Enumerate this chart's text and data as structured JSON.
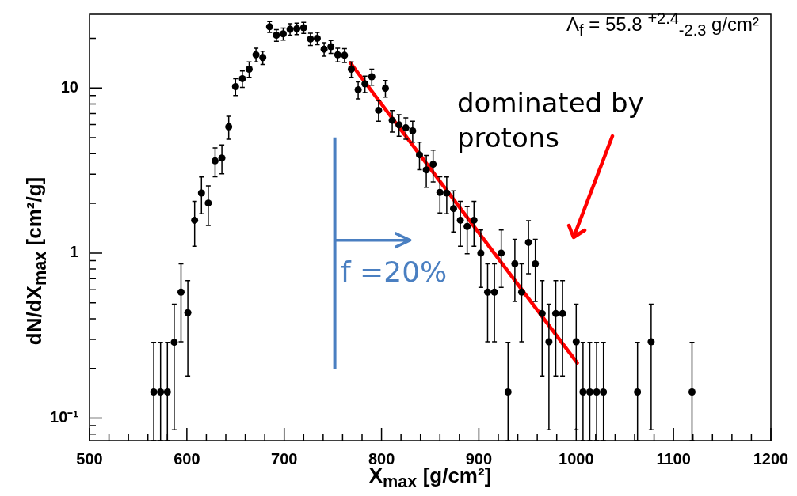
{
  "chart_data": {
    "type": "scatter",
    "xlabel": "X$_{max}$  [g/cm²]",
    "ylabel": "dN/dX$_{max}$  [cm²/g]",
    "xlim": [
      500,
      1200
    ],
    "xticks": [
      500,
      {
        "value": 520,
        "label": null
      },
      {
        "value": 540,
        "label": null
      },
      {
        "value": 560,
        "label": null
      },
      {
        "value": 580,
        "label": null
      },
      600,
      {
        "value": 620,
        "label": null
      },
      {
        "value": 640,
        "label": null
      },
      {
        "value": 660,
        "label": null
      },
      {
        "value": 680,
        "label": null
      },
      700,
      {
        "value": 720,
        "label": null
      },
      {
        "value": 740,
        "label": null
      },
      {
        "value": 760,
        "label": null
      },
      {
        "value": 780,
        "label": null
      },
      800,
      {
        "value": 820,
        "label": null
      },
      {
        "value": 840,
        "label": null
      },
      {
        "value": 860,
        "label": null
      },
      {
        "value": 880,
        "label": null
      },
      900,
      {
        "value": 920,
        "label": null
      },
      {
        "value": 940,
        "label": null
      },
      {
        "value": 960,
        "label": null
      },
      {
        "value": 980,
        "label": null
      },
      1000,
      {
        "value": 1020,
        "label": null
      },
      {
        "value": 1040,
        "label": null
      },
      {
        "value": 1060,
        "label": null
      },
      {
        "value": 1080,
        "label": null
      },
      1100,
      {
        "value": 1120,
        "label": null
      },
      {
        "value": 1140,
        "label": null
      },
      {
        "value": 1160,
        "label": null
      },
      {
        "value": 1180,
        "label": null
      },
      1200
    ],
    "ylim": [
      0.073,
      28
    ],
    "yticks": [
      {
        "value": 0.08,
        "label": null
      },
      {
        "value": 0.09,
        "label": null
      },
      {
        "value": 0.1,
        "label": "10⁻¹"
      },
      {
        "value": 0.2,
        "label": null
      },
      {
        "value": 0.3,
        "label": null
      },
      {
        "value": 0.4,
        "label": null
      },
      {
        "value": 0.5,
        "label": null
      },
      {
        "value": 0.6,
        "label": null
      },
      {
        "value": 0.7,
        "label": null
      },
      {
        "value": 0.8,
        "label": null
      },
      {
        "value": 0.9,
        "label": null
      },
      1,
      {
        "value": 2,
        "label": null
      },
      {
        "value": 3,
        "label": null
      },
      {
        "value": 4,
        "label": null
      },
      {
        "value": 5,
        "label": null
      },
      {
        "value": 6,
        "label": null
      },
      {
        "value": 7,
        "label": null
      },
      {
        "value": 8,
        "label": null
      },
      {
        "value": 9,
        "label": null
      },
      10,
      {
        "value": 20,
        "label": null
      }
    ],
    "log": "y",
    "series": [
      {
        "marker": "circle",
        "color": "#000000",
        "x": [
          566,
          573,
          580,
          587,
          594,
          601,
          608,
          615,
          622,
          629,
          636,
          643,
          650,
          657,
          664,
          671,
          678,
          685,
          692,
          699,
          706,
          713,
          720,
          727,
          734,
          741,
          748,
          755,
          762,
          769,
          776,
          783,
          790,
          797,
          804,
          811,
          818,
          825,
          832,
          839,
          846,
          853,
          860,
          867,
          874,
          881,
          888,
          895,
          902,
          909,
          916,
          923,
          930,
          937,
          944,
          951,
          958,
          965,
          972,
          979,
          986,
          1000,
          1007,
          1014,
          1021,
          1028,
          1063,
          1077,
          1119
        ],
        "values": [
          0.144,
          0.144,
          0.144,
          0.288,
          0.58,
          0.435,
          1.58,
          2.31,
          2.01,
          3.62,
          3.77,
          5.82,
          10.2,
          11.4,
          13.0,
          15.9,
          15.3,
          23.5,
          20.9,
          21.3,
          22.7,
          22.9,
          23.2,
          19.8,
          20.0,
          17.2,
          17.8,
          15.9,
          15.8,
          13.0,
          9.76,
          10.6,
          11.7,
          7.33,
          9.96,
          6.37,
          5.98,
          5.74,
          5.5,
          3.94,
          3.19,
          3.45,
          2.33,
          2.31,
          1.86,
          1.58,
          1.45,
          1.58,
          1.0,
          0.58,
          0.58,
          1.0,
          0.144,
          0.86,
          0.58,
          1.16,
          0.86,
          0.43,
          0.29,
          0.43,
          0.43,
          0.29,
          0.144,
          0.144,
          0.144,
          0.144,
          0.144,
          0.29,
          0.144
        ],
        "errors": [
          [
            0.073,
            0.288
          ],
          [
            0.073,
            0.288
          ],
          [
            0.073,
            0.288
          ],
          [
            0.085,
            0.49
          ],
          [
            0.29,
            0.86
          ],
          [
            0.18,
            0.68
          ],
          [
            1.1,
            2.06
          ],
          [
            1.73,
            2.89
          ],
          [
            1.47,
            2.55
          ],
          [
            2.9,
            4.34
          ],
          [
            3.02,
            4.52
          ],
          [
            4.9,
            6.74
          ],
          [
            9.0,
            11.4
          ],
          [
            10.1,
            12.7
          ],
          [
            11.6,
            14.4
          ],
          [
            14.4,
            17.4
          ],
          [
            13.9,
            16.7
          ],
          [
            21.7,
            25.3
          ],
          [
            19.2,
            22.6
          ],
          [
            19.5,
            23.1
          ],
          [
            20.9,
            24.5
          ],
          [
            21.1,
            24.7
          ],
          [
            21.4,
            25.0
          ],
          [
            18.1,
            21.5
          ],
          [
            18.3,
            21.7
          ],
          [
            15.6,
            18.8
          ],
          [
            16.2,
            19.4
          ],
          [
            14.4,
            17.4
          ],
          [
            14.3,
            17.3
          ],
          [
            11.6,
            14.4
          ],
          [
            8.6,
            10.9
          ],
          [
            9.4,
            11.8
          ],
          [
            10.4,
            13.0
          ],
          [
            6.3,
            8.4
          ],
          [
            8.8,
            11.1
          ],
          [
            5.4,
            7.3
          ],
          [
            5.1,
            6.9
          ],
          [
            4.9,
            6.6
          ],
          [
            4.7,
            6.3
          ],
          [
            3.2,
            4.7
          ],
          [
            2.5,
            3.9
          ],
          [
            2.7,
            4.2
          ],
          [
            1.75,
            2.9
          ],
          [
            1.73,
            2.89
          ],
          [
            1.34,
            2.38
          ],
          [
            1.1,
            2.06
          ],
          [
            0.99,
            1.91
          ],
          [
            1.1,
            2.06
          ],
          [
            0.62,
            1.38
          ],
          [
            0.29,
            0.86
          ],
          [
            0.29,
            0.86
          ],
          [
            0.62,
            1.38
          ],
          [
            0.073,
            0.288
          ],
          [
            0.51,
            1.21
          ],
          [
            0.29,
            0.86
          ],
          [
            0.75,
            1.57
          ],
          [
            0.51,
            1.21
          ],
          [
            0.18,
            0.68
          ],
          [
            0.085,
            0.49
          ],
          [
            0.18,
            0.68
          ],
          [
            0.18,
            0.68
          ],
          [
            0.085,
            0.49
          ],
          [
            0.073,
            0.288
          ],
          [
            0.073,
            0.288
          ],
          [
            0.073,
            0.288
          ],
          [
            0.073,
            0.288
          ],
          [
            0.073,
            0.288
          ],
          [
            0.085,
            0.49
          ],
          [
            0.073,
            0.288
          ]
        ]
      },
      {
        "type": "line",
        "marker": "none",
        "color": "#ff0000",
        "line_style": "solid",
        "x": [
          768,
          1001
        ],
        "values": [
          14.2,
          0.216
        ]
      }
    ],
    "ref_lines": [
      {
        "axis": "x",
        "value": 752,
        "color": "#4a7fc1"
      }
    ],
    "annotations": [
      "Λ$_{f}$ = 55.8 $^{+2.4}$$_{-2.3}$ g/cm²",
      "dominated by protons",
      "f =20%"
    ]
  }
}
